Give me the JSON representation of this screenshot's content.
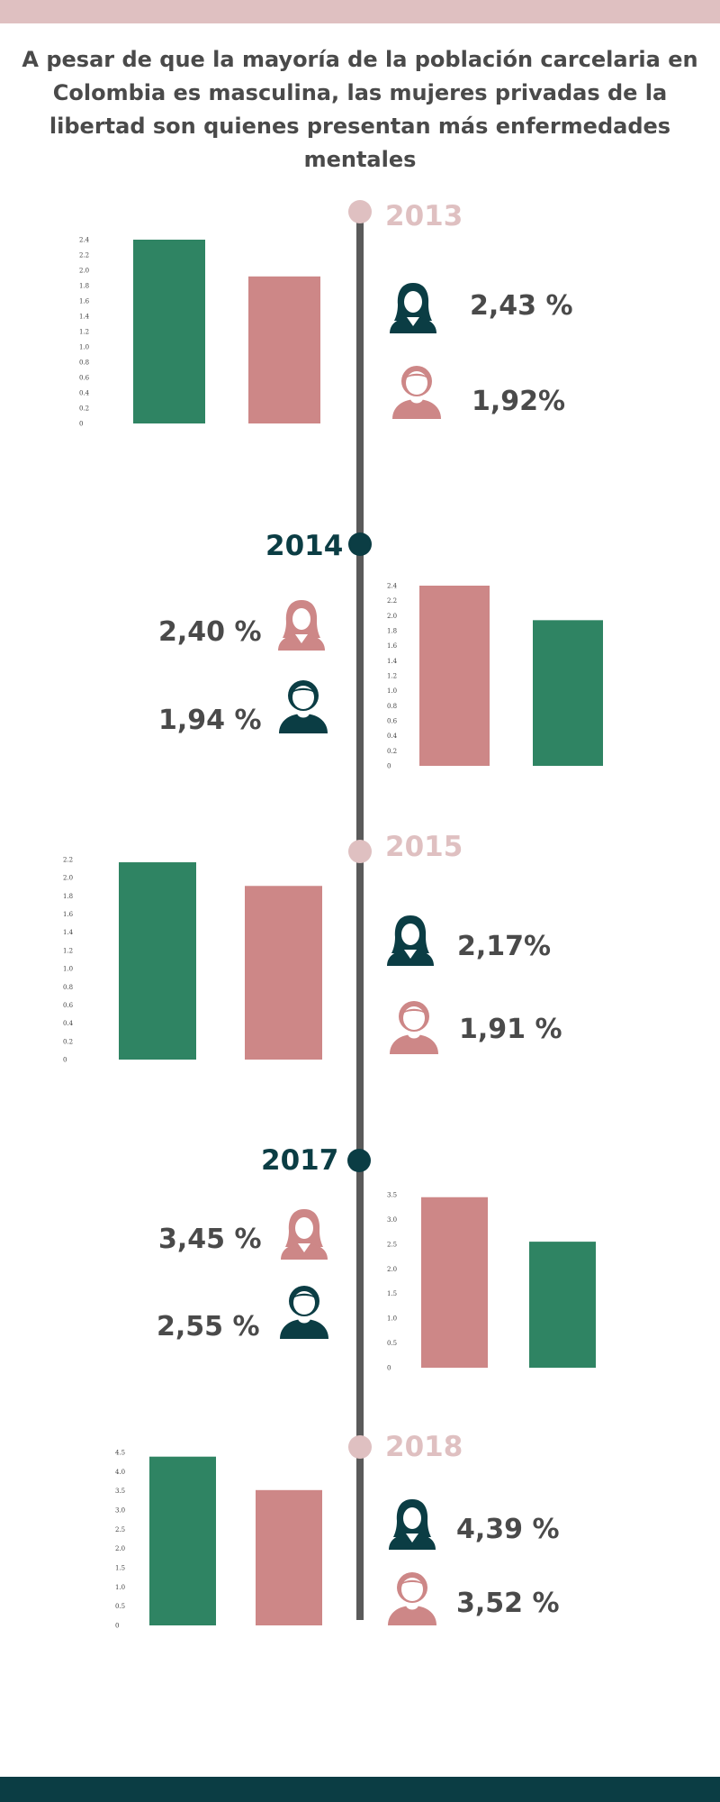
{
  "headline": "A pesar de que la mayoría de la población carcelaria en Colombia es masculina, las mujeres privadas de la libertad son quienes presentan más enfermedades mentales",
  "colors": {
    "top_band": "#dfc0c1",
    "bottom_band": "#0b3d44",
    "timeline": "#5a5a5a",
    "year_light": "#dfc0c1",
    "year_dark": "#0b3d44",
    "bar_green": "#2f8463",
    "bar_pink": "#cd8787",
    "icon_dark": "#0b3d44",
    "icon_pink": "#cd8787",
    "text": "#4a4a4a"
  },
  "years": [
    {
      "label": "2013",
      "female_pct": "2,43 %",
      "male_pct": "1,92%",
      "female_icon": "woman-icon",
      "male_icon": "man-icon"
    },
    {
      "label": "2014",
      "female_pct": "2,40 %",
      "male_pct": "1,94 %",
      "female_icon": "woman-icon",
      "male_icon": "man-icon"
    },
    {
      "label": "2015",
      "female_pct": "2,17%",
      "male_pct": "1,91 %",
      "female_icon": "woman-icon",
      "male_icon": "man-icon"
    },
    {
      "label": "2017",
      "female_pct": "3,45 %",
      "male_pct": "2,55 %",
      "female_icon": "woman-icon",
      "male_icon": "man-icon"
    },
    {
      "label": "2018",
      "female_pct": "4,39 %",
      "male_pct": "3,52 %",
      "female_icon": "woman-icon",
      "male_icon": "man-icon"
    }
  ],
  "chart_data": [
    {
      "type": "bar",
      "year": "2013",
      "values": [
        2.43,
        1.92
      ],
      "series_colors": [
        "#2f8463",
        "#cd8787"
      ],
      "ylim": [
        0,
        2.4
      ],
      "ticks": [
        "0",
        "0.2",
        "0.4",
        "0.6",
        "0.8",
        "1.0",
        "1.2",
        "1.4",
        "1.6",
        "1.8",
        "2.0",
        "2.2",
        "2.4"
      ]
    },
    {
      "type": "bar",
      "year": "2014",
      "values": [
        2.4,
        1.94
      ],
      "series_colors": [
        "#cd8787",
        "#2f8463"
      ],
      "ylim": [
        0,
        2.4
      ],
      "ticks": [
        "0",
        "0.2",
        "0.4",
        "0.6",
        "0.8",
        "1.0",
        "1.2",
        "1.4",
        "1.6",
        "1.8",
        "2.0",
        "2.2",
        "2.4"
      ]
    },
    {
      "type": "bar",
      "year": "2015",
      "values": [
        2.17,
        1.91
      ],
      "series_colors": [
        "#2f8463",
        "#cd8787"
      ],
      "ylim": [
        0,
        2.2
      ],
      "ticks": [
        "0",
        "0.2",
        "0.4",
        "0.6",
        "0.8",
        "1.0",
        "1.2",
        "1.4",
        "1.6",
        "1.8",
        "2.0",
        "2.2"
      ]
    },
    {
      "type": "bar",
      "year": "2017",
      "values": [
        3.45,
        2.55
      ],
      "series_colors": [
        "#cd8787",
        "#2f8463"
      ],
      "ylim": [
        0,
        3.5
      ],
      "ticks": [
        "0",
        "0.5",
        "1.0",
        "1.5",
        "2.0",
        "2.5",
        "3.0",
        "3.5"
      ]
    },
    {
      "type": "bar",
      "year": "2018",
      "values": [
        4.39,
        3.52
      ],
      "series_colors": [
        "#2f8463",
        "#cd8787"
      ],
      "ylim": [
        0,
        4.5
      ],
      "ticks": [
        "0",
        "0.5",
        "1.0",
        "1.5",
        "2.0",
        "2.5",
        "3.0",
        "3.5",
        "4.0",
        "4.5"
      ]
    }
  ]
}
